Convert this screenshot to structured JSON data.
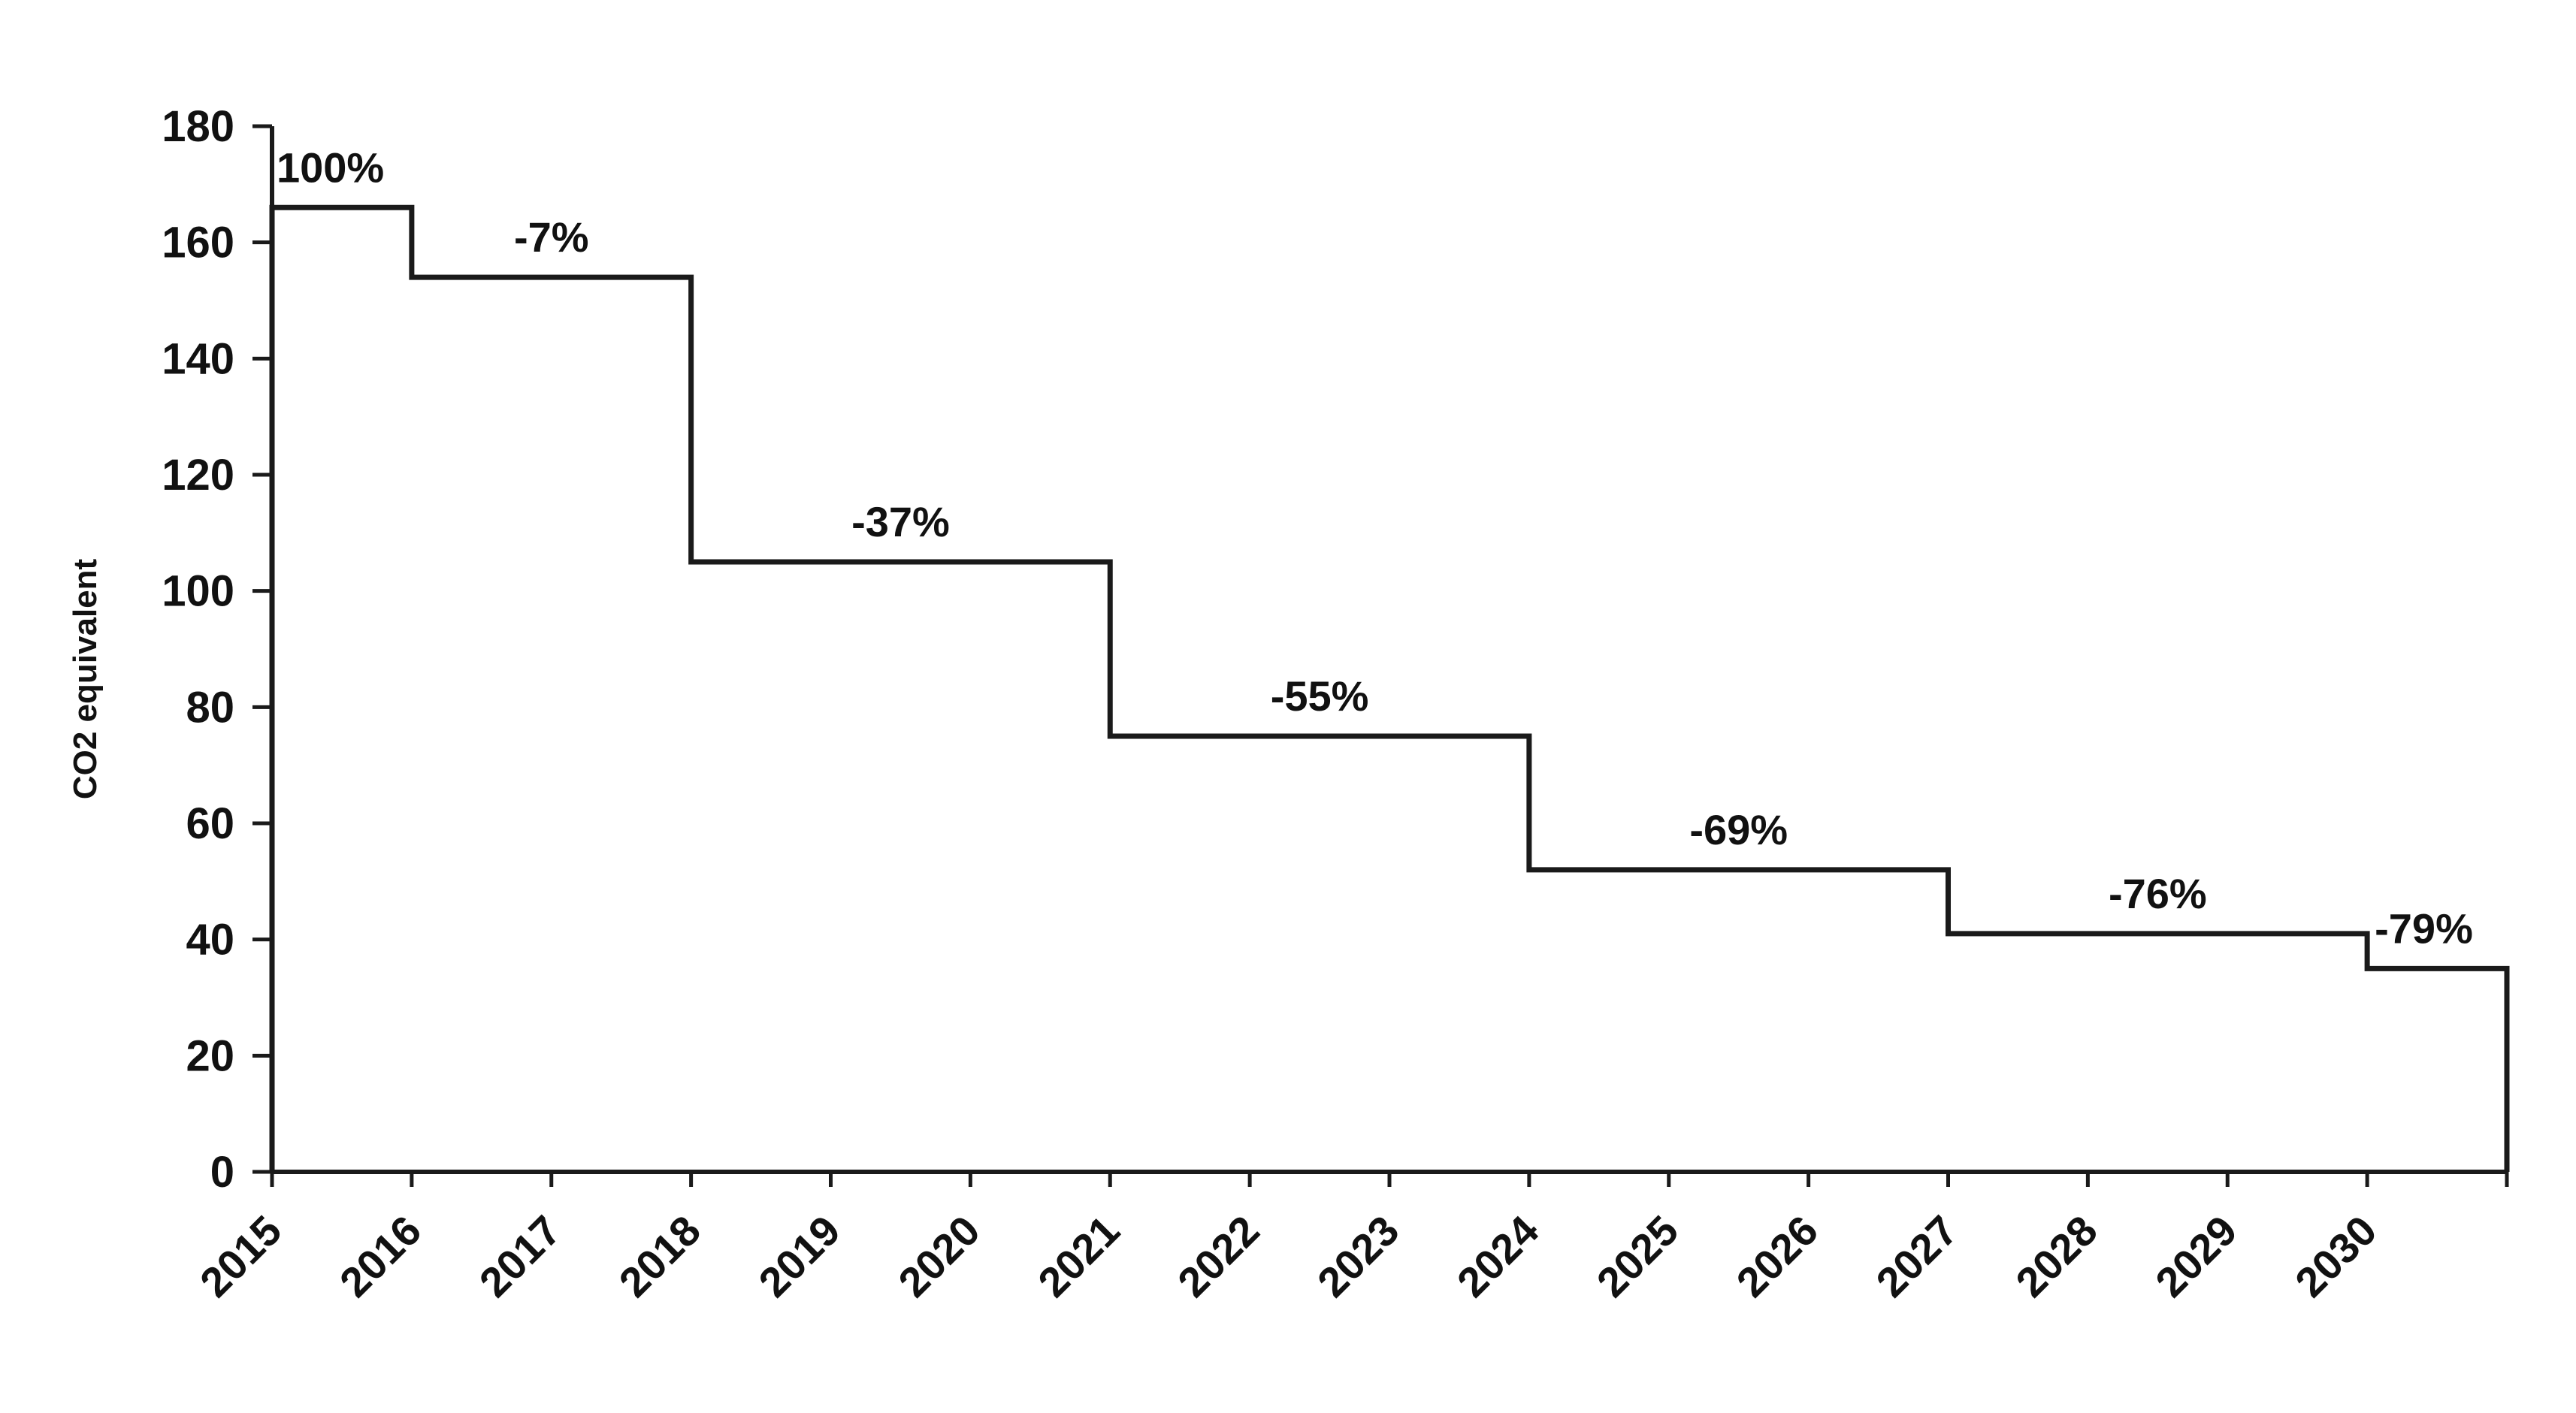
{
  "chart_data": {
    "type": "line",
    "step": true,
    "ylabel": "CO2 equivalent",
    "xlabel": "",
    "ylim": [
      0,
      180
    ],
    "yticks": [
      0,
      20,
      40,
      60,
      80,
      100,
      120,
      140,
      160,
      180
    ],
    "xlim": [
      2015,
      2031
    ],
    "xticks": [
      "2015",
      "2016",
      "2017",
      "2018",
      "2019",
      "2020",
      "2021",
      "2022",
      "2023",
      "2024",
      "2025",
      "2026",
      "2027",
      "2028",
      "2029",
      "2030"
    ],
    "grid": false,
    "legend": "none",
    "line_color": "#1a1a1a",
    "steps": [
      {
        "start": 2015,
        "end": 2016,
        "value": 166,
        "label": "100%"
      },
      {
        "start": 2016,
        "end": 2018,
        "value": 154,
        "label": "-7%"
      },
      {
        "start": 2018,
        "end": 2021,
        "value": 105,
        "label": "-37%"
      },
      {
        "start": 2021,
        "end": 2024,
        "value": 75,
        "label": "-55%"
      },
      {
        "start": 2024,
        "end": 2027,
        "value": 52,
        "label": "-69%"
      },
      {
        "start": 2027,
        "end": 2030,
        "value": 41,
        "label": "-76%"
      },
      {
        "start": 2030,
        "end": 2031,
        "value": 35,
        "label": "-79%"
      }
    ]
  }
}
